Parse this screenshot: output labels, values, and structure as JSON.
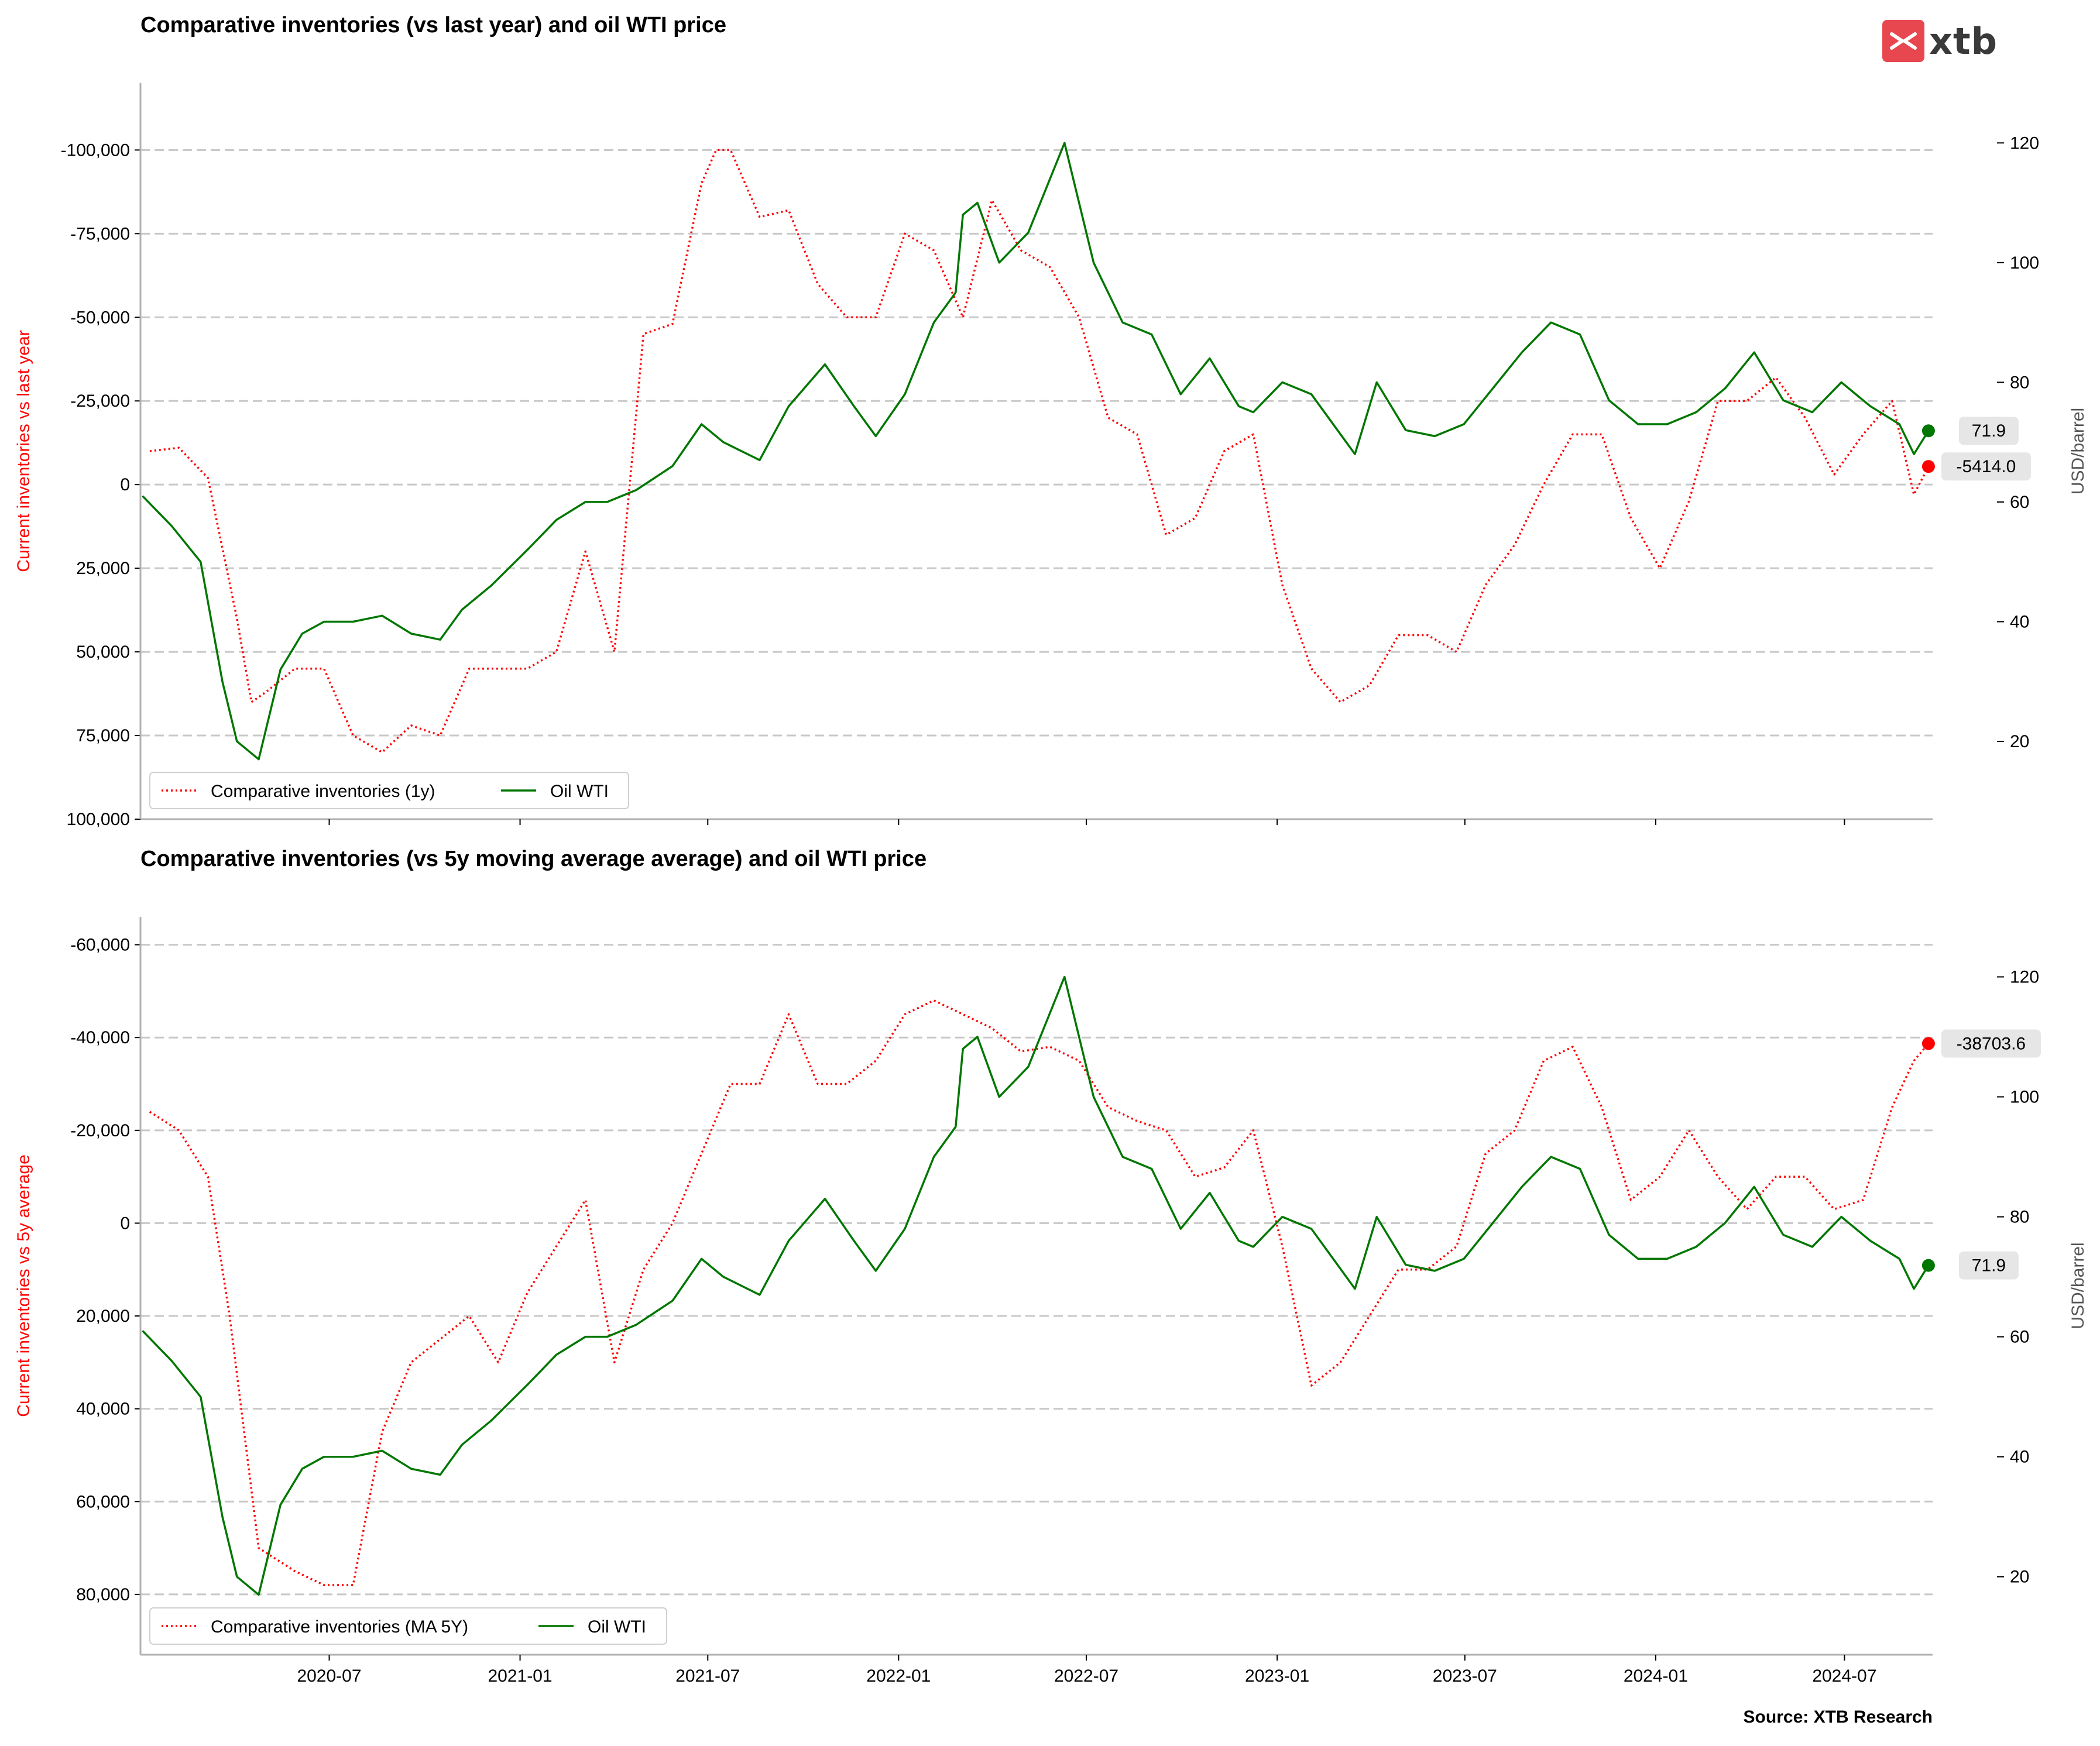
{
  "brand": {
    "logo_text": "xtb",
    "logo_color": "#e8474f"
  },
  "source": "Source: XTB Research",
  "colors": {
    "inventories": "#ff0000",
    "wti": "#007700",
    "grid": "#c8c8c8",
    "callout_bg": "#e6e6e6"
  },
  "chart_data": [
    {
      "type": "line",
      "title": "Comparative inventories (vs last year) and oil WTI price",
      "ylabel_left": "Current inventories vs last year",
      "ylabel_right": "USD/barrel",
      "left_axis_inverted": true,
      "left_ylim": [
        100000,
        -120000
      ],
      "left_ticks": [
        100000,
        75000,
        50000,
        25000,
        0,
        -25000,
        -50000,
        -75000,
        -100000
      ],
      "left_tick_labels": [
        "100,000",
        "75,000",
        "50,000",
        "25,000",
        "0",
        "-25,000",
        "-50,000",
        "-75,000",
        "-100,000"
      ],
      "right_ylim": [
        7,
        130
      ],
      "right_ticks": [
        20,
        40,
        60,
        80,
        100,
        120
      ],
      "right_tick_labels": [
        "20",
        "40",
        "60",
        "80",
        "100",
        "120"
      ],
      "legend": {
        "placement": "lower-left",
        "entries": [
          "Comparative inventories (1y)",
          "Oil WTI"
        ]
      },
      "last_labels": {
        "wti": "71.9",
        "inventories": "-5414.0"
      },
      "series": [
        {
          "name": "Comparative inventories (1y)",
          "axis": "left",
          "style": "dotted",
          "x": [
            "2020-01-10",
            "2020-02-07",
            "2020-03-06",
            "2020-04-03",
            "2020-04-17",
            "2020-05-01",
            "2020-05-29",
            "2020-06-26",
            "2020-07-24",
            "2020-08-21",
            "2020-09-18",
            "2020-10-16",
            "2020-11-13",
            "2020-12-11",
            "2021-01-08",
            "2021-02-05",
            "2021-03-05",
            "2021-04-02",
            "2021-04-30",
            "2021-05-28",
            "2021-06-25",
            "2021-07-09",
            "2021-07-23",
            "2021-08-20",
            "2021-09-17",
            "2021-10-15",
            "2021-11-12",
            "2021-12-10",
            "2022-01-07",
            "2022-02-04",
            "2022-03-04",
            "2022-04-01",
            "2022-04-29",
            "2022-05-27",
            "2022-06-24",
            "2022-07-22",
            "2022-08-19",
            "2022-09-16",
            "2022-10-14",
            "2022-11-11",
            "2022-12-09",
            "2023-01-06",
            "2023-02-03",
            "2023-03-03",
            "2023-03-31",
            "2023-04-28",
            "2023-05-26",
            "2023-06-23",
            "2023-07-21",
            "2023-08-18",
            "2023-09-15",
            "2023-10-13",
            "2023-11-10",
            "2023-12-08",
            "2024-01-05",
            "2024-02-02",
            "2024-03-01",
            "2024-03-29",
            "2024-04-26",
            "2024-05-24",
            "2024-06-21",
            "2024-07-19",
            "2024-08-16",
            "2024-09-06",
            "2024-09-20"
          ],
          "y": [
            -10000,
            -11000,
            -2000,
            40000,
            65000,
            62000,
            55000,
            55000,
            75000,
            80000,
            72000,
            75000,
            55000,
            55000,
            55000,
            50000,
            20000,
            50000,
            -45000,
            -48000,
            -90000,
            -100000,
            -100000,
            -80000,
            -82000,
            -60000,
            -50000,
            -50000,
            -75000,
            -70000,
            -50000,
            -85000,
            -70000,
            -65000,
            -50000,
            -20000,
            -15000,
            15000,
            10000,
            -10000,
            -15000,
            30000,
            55000,
            65000,
            60000,
            45000,
            45000,
            50000,
            30000,
            18000,
            0,
            -15000,
            -15000,
            10000,
            25000,
            5000,
            -25000,
            -25000,
            -32000,
            -20000,
            -3000,
            -15000,
            -25000,
            3000,
            -5414
          ]
        },
        {
          "name": "Oil WTI",
          "axis": "right",
          "style": "solid",
          "x": [
            "2020-01-03",
            "2020-01-31",
            "2020-02-28",
            "2020-03-20",
            "2020-04-03",
            "2020-04-24",
            "2020-05-15",
            "2020-06-05",
            "2020-06-26",
            "2020-07-24",
            "2020-08-21",
            "2020-09-18",
            "2020-10-16",
            "2020-11-06",
            "2020-12-04",
            "2021-01-08",
            "2021-02-05",
            "2021-03-05",
            "2021-03-26",
            "2021-04-23",
            "2021-05-28",
            "2021-06-25",
            "2021-07-16",
            "2021-08-20",
            "2021-09-17",
            "2021-10-22",
            "2021-11-19",
            "2021-12-10",
            "2022-01-07",
            "2022-02-04",
            "2022-02-25",
            "2022-03-04",
            "2022-03-18",
            "2022-04-08",
            "2022-05-06",
            "2022-06-10",
            "2022-07-08",
            "2022-08-05",
            "2022-09-02",
            "2022-09-30",
            "2022-10-28",
            "2022-11-25",
            "2022-12-09",
            "2023-01-06",
            "2023-02-03",
            "2023-03-17",
            "2023-04-07",
            "2023-05-05",
            "2023-06-02",
            "2023-06-30",
            "2023-07-28",
            "2023-08-25",
            "2023-09-22",
            "2023-10-20",
            "2023-11-17",
            "2023-12-15",
            "2024-01-12",
            "2024-02-09",
            "2024-03-08",
            "2024-04-05",
            "2024-05-03",
            "2024-05-31",
            "2024-06-28",
            "2024-07-26",
            "2024-08-23",
            "2024-09-06",
            "2024-09-20"
          ],
          "y": [
            61,
            56,
            50,
            30,
            20,
            17,
            32,
            38,
            40,
            40,
            41,
            38,
            37,
            42,
            46,
            52,
            57,
            60,
            60,
            62,
            66,
            73,
            70,
            67,
            76,
            83,
            76,
            71,
            78,
            90,
            95,
            108,
            110,
            100,
            105,
            120,
            100,
            90,
            88,
            78,
            84,
            76,
            75,
            80,
            78,
            68,
            80,
            72,
            71,
            73,
            79,
            85,
            90,
            88,
            77,
            73,
            73,
            75,
            79,
            85,
            77,
            75,
            80,
            76,
            73,
            68,
            71.9
          ]
        }
      ]
    },
    {
      "type": "line",
      "title": "Comparative inventories (vs 5y moving average average) and oil WTI price",
      "ylabel_left": "Current inventories vs 5y average",
      "ylabel_right": "USD/barrel",
      "left_axis_inverted": true,
      "left_ylim": [
        93000,
        -66000
      ],
      "left_ticks": [
        80000,
        60000,
        40000,
        20000,
        0,
        -20000,
        -40000,
        -60000
      ],
      "left_tick_labels": [
        "80,000",
        "60,000",
        "40,000",
        "20,000",
        "0",
        "-20,000",
        "-40,000",
        "-60,000"
      ],
      "right_ylim": [
        7,
        130
      ],
      "right_ticks": [
        20,
        40,
        60,
        80,
        100,
        120
      ],
      "right_tick_labels": [
        "20",
        "40",
        "60",
        "80",
        "100",
        "120"
      ],
      "x_tick_labels": [
        "2020-07",
        "2021-01",
        "2021-07",
        "2022-01",
        "2022-07",
        "2023-01",
        "2023-07",
        "2024-01",
        "2024-07"
      ],
      "x_ticks": [
        "2020-07-01",
        "2021-01-01",
        "2021-07-01",
        "2022-01-01",
        "2022-07-01",
        "2023-01-01",
        "2023-07-01",
        "2024-01-01",
        "2024-07-01"
      ],
      "legend": {
        "placement": "lower-left",
        "entries": [
          "Comparative inventories (MA 5Y)",
          "Oil WTI"
        ]
      },
      "last_labels": {
        "wti": "71.9",
        "inventories": "-38703.6"
      },
      "series": [
        {
          "name": "Comparative inventories (MA 5Y)",
          "axis": "left",
          "style": "dotted",
          "x": [
            "2020-01-10",
            "2020-02-07",
            "2020-03-06",
            "2020-03-27",
            "2020-04-24",
            "2020-05-29",
            "2020-06-26",
            "2020-07-24",
            "2020-08-21",
            "2020-09-18",
            "2020-10-16",
            "2020-11-13",
            "2020-12-11",
            "2021-01-08",
            "2021-02-05",
            "2021-03-05",
            "2021-04-02",
            "2021-04-30",
            "2021-05-28",
            "2021-06-25",
            "2021-07-23",
            "2021-08-20",
            "2021-09-17",
            "2021-10-15",
            "2021-11-12",
            "2021-12-10",
            "2022-01-07",
            "2022-02-04",
            "2022-03-04",
            "2022-04-01",
            "2022-04-29",
            "2022-05-27",
            "2022-06-24",
            "2022-07-22",
            "2022-08-19",
            "2022-09-16",
            "2022-10-14",
            "2022-11-11",
            "2022-12-09",
            "2023-01-06",
            "2023-02-03",
            "2023-03-03",
            "2023-03-31",
            "2023-04-28",
            "2023-05-26",
            "2023-06-23",
            "2023-07-21",
            "2023-08-18",
            "2023-09-15",
            "2023-10-13",
            "2023-11-10",
            "2023-12-08",
            "2024-01-05",
            "2024-02-02",
            "2024-03-01",
            "2024-03-29",
            "2024-04-26",
            "2024-05-24",
            "2024-06-21",
            "2024-07-19",
            "2024-08-16",
            "2024-09-06",
            "2024-09-20"
          ],
          "y": [
            -24000,
            -20000,
            -10000,
            20000,
            70000,
            75000,
            78000,
            78000,
            45000,
            30000,
            25000,
            20000,
            30000,
            15000,
            5000,
            -5000,
            30000,
            10000,
            0,
            -15000,
            -30000,
            -30000,
            -45000,
            -30000,
            -30000,
            -35000,
            -45000,
            -48000,
            -45000,
            -42000,
            -37000,
            -38000,
            -35000,
            -25000,
            -22000,
            -20000,
            -10000,
            -12000,
            -20000,
            5000,
            35000,
            30000,
            20000,
            10000,
            10000,
            5000,
            -15000,
            -20000,
            -35000,
            -38000,
            -25000,
            -5000,
            -10000,
            -20000,
            -10000,
            -3000,
            -10000,
            -10000,
            -3000,
            -5000,
            -25000,
            -35000,
            -38703.6
          ]
        },
        {
          "name": "Oil WTI",
          "axis": "right",
          "style": "solid",
          "x": [
            "2020-01-03",
            "2020-01-31",
            "2020-02-28",
            "2020-03-20",
            "2020-04-03",
            "2020-04-24",
            "2020-05-15",
            "2020-06-05",
            "2020-06-26",
            "2020-07-24",
            "2020-08-21",
            "2020-09-18",
            "2020-10-16",
            "2020-11-06",
            "2020-12-04",
            "2021-01-08",
            "2021-02-05",
            "2021-03-05",
            "2021-03-26",
            "2021-04-23",
            "2021-05-28",
            "2021-06-25",
            "2021-07-16",
            "2021-08-20",
            "2021-09-17",
            "2021-10-22",
            "2021-11-19",
            "2021-12-10",
            "2022-01-07",
            "2022-02-04",
            "2022-02-25",
            "2022-03-04",
            "2022-03-18",
            "2022-04-08",
            "2022-05-06",
            "2022-06-10",
            "2022-07-08",
            "2022-08-05",
            "2022-09-02",
            "2022-09-30",
            "2022-10-28",
            "2022-11-25",
            "2022-12-09",
            "2023-01-06",
            "2023-02-03",
            "2023-03-17",
            "2023-04-07",
            "2023-05-05",
            "2023-06-02",
            "2023-06-30",
            "2023-07-28",
            "2023-08-25",
            "2023-09-22",
            "2023-10-20",
            "2023-11-17",
            "2023-12-15",
            "2024-01-12",
            "2024-02-09",
            "2024-03-08",
            "2024-04-05",
            "2024-05-03",
            "2024-05-31",
            "2024-06-28",
            "2024-07-26",
            "2024-08-23",
            "2024-09-06",
            "2024-09-20"
          ],
          "y": [
            61,
            56,
            50,
            30,
            20,
            17,
            32,
            38,
            40,
            40,
            41,
            38,
            37,
            42,
            46,
            52,
            57,
            60,
            60,
            62,
            66,
            73,
            70,
            67,
            76,
            83,
            76,
            71,
            78,
            90,
            95,
            108,
            110,
            100,
            105,
            120,
            100,
            90,
            88,
            78,
            84,
            76,
            75,
            80,
            78,
            68,
            80,
            72,
            71,
            73,
            79,
            85,
            90,
            88,
            77,
            73,
            73,
            75,
            79,
            85,
            77,
            75,
            80,
            76,
            73,
            68,
            71.9
          ]
        }
      ]
    }
  ]
}
